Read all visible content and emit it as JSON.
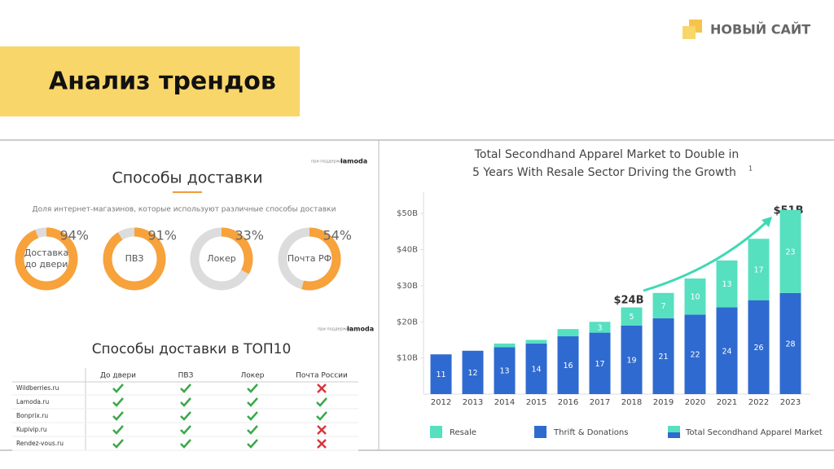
{
  "header": {
    "title": "Анализ трендов",
    "logo": "НОВЫЙ САЙТ"
  },
  "delivery": {
    "title": "Способы доставки",
    "subtitle": "Доля интернет-магазинов, которые используют различные способы доставки",
    "support": "при поддержке",
    "partner": "lamoda",
    "donuts": [
      {
        "label": "Доставка до двери",
        "value": 94,
        "value_label": "94%"
      },
      {
        "label": "ПВЗ",
        "value": 91,
        "value_label": "91%"
      },
      {
        "label": "Локер",
        "value": 33,
        "value_label": "33%"
      },
      {
        "label": "Почта РФ",
        "value": 54,
        "value_label": "54%"
      }
    ]
  },
  "top10": {
    "title": "Способы доставки в ТОП10",
    "support": "при поддержке",
    "partner": "lamoda",
    "columns": [
      "До двери",
      "ПВЗ",
      "Локер",
      "Почта России"
    ],
    "rows": [
      {
        "name": "Wildberries.ru",
        "cells": [
          true,
          true,
          true,
          false
        ]
      },
      {
        "name": "Lamoda.ru",
        "cells": [
          true,
          true,
          true,
          true
        ]
      },
      {
        "name": "Bonprix.ru",
        "cells": [
          true,
          true,
          true,
          true
        ]
      },
      {
        "name": "Kupivip.ru",
        "cells": [
          true,
          true,
          true,
          false
        ]
      },
      {
        "name": "Rendez-vous.ru",
        "cells": [
          true,
          true,
          true,
          false
        ]
      }
    ]
  },
  "chart_data": {
    "type": "stacked_bar",
    "title": "Total Secondhand Apparel Market to Double in",
    "title_line2": "5 Years With Resale Sector Driving the Growth",
    "footnote": "1",
    "categories": [
      "2012",
      "2013",
      "2014",
      "2015",
      "2016",
      "2017",
      "2018",
      "2019",
      "2020",
      "2021",
      "2022",
      "2023"
    ],
    "series": [
      {
        "name": "Thrift & Donations",
        "color": "#2f6ad0",
        "values": [
          11,
          12,
          13,
          14,
          16,
          17,
          19,
          21,
          22,
          24,
          26,
          28
        ]
      },
      {
        "name": "Resale",
        "color": "#56e0c0",
        "values": [
          0,
          0,
          1,
          1,
          2,
          3,
          5,
          7,
          10,
          13,
          17,
          23
        ]
      }
    ],
    "total_legend": "Total Secondhand Apparel Market",
    "annotations": [
      "$24B",
      "$51B"
    ],
    "ylim": [
      0,
      55
    ],
    "yticks": [
      {
        "value": 10,
        "label": "$10B"
      },
      {
        "value": 20,
        "label": "$20B"
      },
      {
        "value": 30,
        "label": "$30B"
      },
      {
        "value": 40,
        "label": "$40B"
      },
      {
        "value": 50,
        "label": "$50B"
      }
    ]
  }
}
